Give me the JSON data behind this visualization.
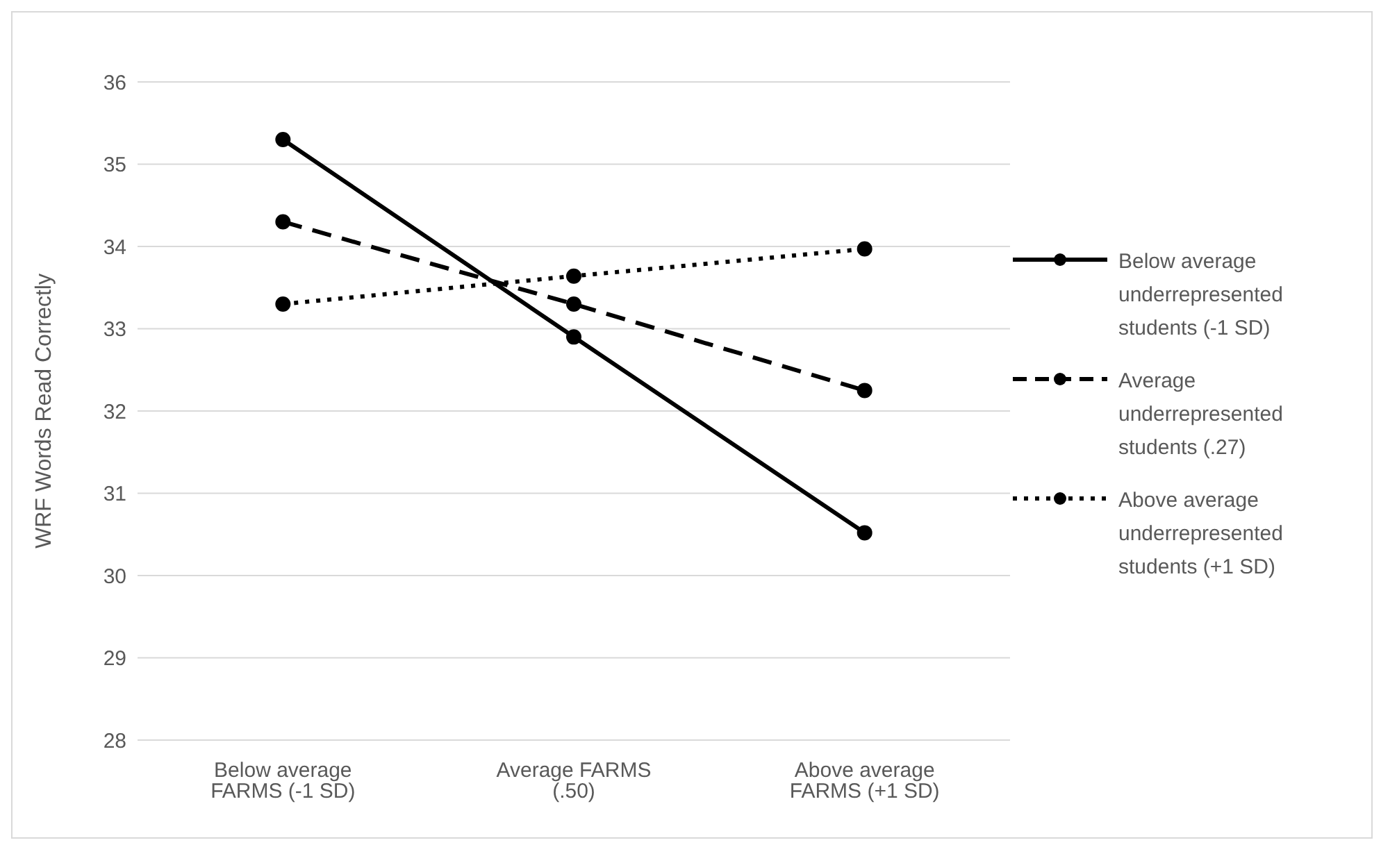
{
  "chart_data": {
    "type": "line",
    "ylabel": "WRF Words Read Correctly",
    "categories": [
      "Below average FARMS (-1 SD)",
      "Average FARMS (.50)",
      "Above average FARMS (+1 SD)"
    ],
    "series": [
      {
        "name": "Below average underrepresented students (-1 SD)",
        "color": "#000000",
        "line_style": "solid",
        "values": [
          35.3,
          32.9,
          30.52
        ]
      },
      {
        "name": "Average underrepresented students (.27)",
        "color": "#000000",
        "line_style": "dashed",
        "values": [
          34.3,
          33.3,
          32.25
        ]
      },
      {
        "name": "Above average underrepresented students (+1 SD)",
        "color": "#000000",
        "line_style": "dotted",
        "values": [
          33.3,
          33.64,
          33.97
        ]
      }
    ],
    "ylim": [
      28,
      36
    ],
    "yticks": [
      28,
      29,
      30,
      31,
      32,
      33,
      34,
      35,
      36
    ],
    "grid": "y",
    "legend": "right",
    "marker": "circle"
  }
}
